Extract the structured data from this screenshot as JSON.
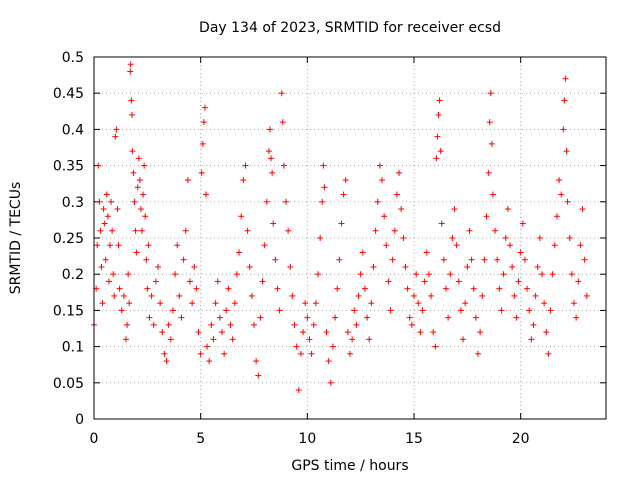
{
  "chart_data": {
    "type": "scatter",
    "title": "Day 134 of 2023, SRMTID for receiver ecsd",
    "xlabel": "GPS time / hours",
    "ylabel": "SRMTID / TECUs",
    "xlim": [
      0,
      24
    ],
    "ylim": [
      0,
      0.5
    ],
    "x_ticks": [
      0,
      5,
      10,
      15,
      20
    ],
    "y_ticks": [
      0,
      0.05,
      0.1,
      0.15,
      0.2,
      0.25,
      0.3,
      0.35,
      0.4,
      0.45,
      0.5
    ],
    "grid": true,
    "marker": "+",
    "color": "#ff0000",
    "series": [
      {
        "name": "SRMTID",
        "points": [
          [
            0.0,
            0.13
          ],
          [
            0.1,
            0.18
          ],
          [
            0.15,
            0.24
          ],
          [
            0.2,
            0.35
          ],
          [
            0.25,
            0.3
          ],
          [
            0.3,
            0.26
          ],
          [
            0.35,
            0.21
          ],
          [
            0.4,
            0.16
          ],
          [
            0.45,
            0.29
          ],
          [
            0.5,
            0.27
          ],
          [
            0.55,
            0.22
          ],
          [
            0.6,
            0.31
          ],
          [
            0.65,
            0.28
          ],
          [
            0.7,
            0.19
          ],
          [
            0.75,
            0.24
          ],
          [
            0.8,
            0.3
          ],
          [
            0.85,
            0.26
          ],
          [
            0.9,
            0.2
          ],
          [
            0.95,
            0.17
          ],
          [
            1.0,
            0.39
          ],
          [
            1.05,
            0.4
          ],
          [
            1.1,
            0.29
          ],
          [
            1.15,
            0.24
          ],
          [
            1.2,
            0.18
          ],
          [
            1.3,
            0.15
          ],
          [
            1.4,
            0.17
          ],
          [
            1.5,
            0.11
          ],
          [
            1.55,
            0.13
          ],
          [
            1.6,
            0.2
          ],
          [
            1.65,
            0.16
          ],
          [
            1.7,
            0.48
          ],
          [
            1.72,
            0.49
          ],
          [
            1.75,
            0.44
          ],
          [
            1.78,
            0.42
          ],
          [
            1.8,
            0.37
          ],
          [
            1.85,
            0.34
          ],
          [
            1.9,
            0.3
          ],
          [
            1.95,
            0.26
          ],
          [
            2.0,
            0.23
          ],
          [
            2.05,
            0.32
          ],
          [
            2.1,
            0.36
          ],
          [
            2.15,
            0.33
          ],
          [
            2.2,
            0.29
          ],
          [
            2.25,
            0.26
          ],
          [
            2.3,
            0.31
          ],
          [
            2.35,
            0.35
          ],
          [
            2.4,
            0.28
          ],
          [
            2.45,
            0.22
          ],
          [
            2.5,
            0.18
          ],
          [
            2.55,
            0.24
          ],
          [
            2.6,
            0.14
          ],
          [
            2.7,
            0.17
          ],
          [
            2.8,
            0.13
          ],
          [
            2.9,
            0.19
          ],
          [
            3.0,
            0.21
          ],
          [
            3.1,
            0.16
          ],
          [
            3.2,
            0.12
          ],
          [
            3.3,
            0.09
          ],
          [
            3.4,
            0.08
          ],
          [
            3.5,
            0.13
          ],
          [
            3.6,
            0.11
          ],
          [
            3.7,
            0.15
          ],
          [
            3.8,
            0.2
          ],
          [
            3.9,
            0.24
          ],
          [
            4.0,
            0.17
          ],
          [
            4.1,
            0.14
          ],
          [
            4.2,
            0.22
          ],
          [
            4.3,
            0.26
          ],
          [
            4.4,
            0.33
          ],
          [
            4.5,
            0.19
          ],
          [
            4.6,
            0.16
          ],
          [
            4.7,
            0.21
          ],
          [
            4.8,
            0.18
          ],
          [
            4.9,
            0.12
          ],
          [
            5.0,
            0.09
          ],
          [
            5.05,
            0.34
          ],
          [
            5.1,
            0.38
          ],
          [
            5.15,
            0.41
          ],
          [
            5.2,
            0.43
          ],
          [
            5.25,
            0.31
          ],
          [
            5.3,
            0.1
          ],
          [
            5.4,
            0.08
          ],
          [
            5.5,
            0.13
          ],
          [
            5.6,
            0.11
          ],
          [
            5.7,
            0.16
          ],
          [
            5.8,
            0.19
          ],
          [
            5.9,
            0.14
          ],
          [
            6.0,
            0.12
          ],
          [
            6.1,
            0.09
          ],
          [
            6.2,
            0.15
          ],
          [
            6.3,
            0.18
          ],
          [
            6.4,
            0.13
          ],
          [
            6.5,
            0.11
          ],
          [
            6.6,
            0.16
          ],
          [
            6.7,
            0.2
          ],
          [
            6.8,
            0.23
          ],
          [
            6.9,
            0.28
          ],
          [
            7.0,
            0.33
          ],
          [
            7.1,
            0.35
          ],
          [
            7.2,
            0.26
          ],
          [
            7.3,
            0.21
          ],
          [
            7.4,
            0.17
          ],
          [
            7.5,
            0.13
          ],
          [
            7.6,
            0.08
          ],
          [
            7.7,
            0.06
          ],
          [
            7.8,
            0.14
          ],
          [
            7.9,
            0.19
          ],
          [
            8.0,
            0.24
          ],
          [
            8.1,
            0.3
          ],
          [
            8.2,
            0.37
          ],
          [
            8.25,
            0.4
          ],
          [
            8.3,
            0.36
          ],
          [
            8.35,
            0.34
          ],
          [
            8.4,
            0.27
          ],
          [
            8.5,
            0.22
          ],
          [
            8.6,
            0.18
          ],
          [
            8.7,
            0.15
          ],
          [
            8.8,
            0.45
          ],
          [
            8.85,
            0.41
          ],
          [
            8.9,
            0.35
          ],
          [
            9.0,
            0.3
          ],
          [
            9.1,
            0.26
          ],
          [
            9.2,
            0.21
          ],
          [
            9.3,
            0.17
          ],
          [
            9.4,
            0.13
          ],
          [
            9.5,
            0.1
          ],
          [
            9.6,
            0.04
          ],
          [
            9.7,
            0.09
          ],
          [
            9.8,
            0.12
          ],
          [
            9.9,
            0.16
          ],
          [
            10.0,
            0.14
          ],
          [
            10.1,
            0.11
          ],
          [
            10.2,
            0.09
          ],
          [
            10.3,
            0.13
          ],
          [
            10.4,
            0.16
          ],
          [
            10.5,
            0.2
          ],
          [
            10.6,
            0.25
          ],
          [
            10.7,
            0.3
          ],
          [
            10.75,
            0.35
          ],
          [
            10.8,
            0.32
          ],
          [
            10.9,
            0.12
          ],
          [
            11.0,
            0.08
          ],
          [
            11.1,
            0.05
          ],
          [
            11.2,
            0.1
          ],
          [
            11.3,
            0.14
          ],
          [
            11.4,
            0.18
          ],
          [
            11.5,
            0.22
          ],
          [
            11.6,
            0.27
          ],
          [
            11.7,
            0.31
          ],
          [
            11.8,
            0.33
          ],
          [
            11.9,
            0.12
          ],
          [
            12.0,
            0.09
          ],
          [
            12.1,
            0.11
          ],
          [
            12.2,
            0.15
          ],
          [
            12.3,
            0.13
          ],
          [
            12.4,
            0.17
          ],
          [
            12.5,
            0.2
          ],
          [
            12.6,
            0.23
          ],
          [
            12.7,
            0.18
          ],
          [
            12.8,
            0.14
          ],
          [
            12.9,
            0.11
          ],
          [
            13.0,
            0.16
          ],
          [
            13.1,
            0.21
          ],
          [
            13.2,
            0.26
          ],
          [
            13.3,
            0.3
          ],
          [
            13.4,
            0.35
          ],
          [
            13.5,
            0.33
          ],
          [
            13.6,
            0.28
          ],
          [
            13.7,
            0.24
          ],
          [
            13.8,
            0.19
          ],
          [
            13.9,
            0.15
          ],
          [
            14.0,
            0.22
          ],
          [
            14.1,
            0.26
          ],
          [
            14.2,
            0.31
          ],
          [
            14.3,
            0.34
          ],
          [
            14.4,
            0.29
          ],
          [
            14.5,
            0.25
          ],
          [
            14.6,
            0.21
          ],
          [
            14.7,
            0.18
          ],
          [
            14.8,
            0.14
          ],
          [
            14.9,
            0.13
          ],
          [
            15.0,
            0.17
          ],
          [
            15.1,
            0.2
          ],
          [
            15.2,
            0.16
          ],
          [
            15.3,
            0.12
          ],
          [
            15.4,
            0.15
          ],
          [
            15.5,
            0.19
          ],
          [
            15.6,
            0.23
          ],
          [
            15.7,
            0.2
          ],
          [
            15.8,
            0.17
          ],
          [
            15.9,
            0.12
          ],
          [
            16.0,
            0.1
          ],
          [
            16.05,
            0.36
          ],
          [
            16.1,
            0.39
          ],
          [
            16.15,
            0.42
          ],
          [
            16.2,
            0.44
          ],
          [
            16.25,
            0.37
          ],
          [
            16.3,
            0.27
          ],
          [
            16.4,
            0.22
          ],
          [
            16.5,
            0.18
          ],
          [
            16.6,
            0.14
          ],
          [
            16.7,
            0.2
          ],
          [
            16.8,
            0.25
          ],
          [
            16.9,
            0.29
          ],
          [
            17.0,
            0.24
          ],
          [
            17.1,
            0.19
          ],
          [
            17.2,
            0.15
          ],
          [
            17.3,
            0.11
          ],
          [
            17.4,
            0.16
          ],
          [
            17.5,
            0.21
          ],
          [
            17.6,
            0.26
          ],
          [
            17.7,
            0.22
          ],
          [
            17.8,
            0.18
          ],
          [
            17.9,
            0.14
          ],
          [
            18.0,
            0.09
          ],
          [
            18.1,
            0.12
          ],
          [
            18.2,
            0.17
          ],
          [
            18.3,
            0.22
          ],
          [
            18.4,
            0.28
          ],
          [
            18.5,
            0.34
          ],
          [
            18.55,
            0.41
          ],
          [
            18.6,
            0.45
          ],
          [
            18.65,
            0.38
          ],
          [
            18.7,
            0.31
          ],
          [
            18.8,
            0.26
          ],
          [
            18.9,
            0.22
          ],
          [
            19.0,
            0.18
          ],
          [
            19.1,
            0.15
          ],
          [
            19.2,
            0.2
          ],
          [
            19.3,
            0.25
          ],
          [
            19.4,
            0.29
          ],
          [
            19.5,
            0.24
          ],
          [
            19.6,
            0.21
          ],
          [
            19.7,
            0.17
          ],
          [
            19.8,
            0.14
          ],
          [
            19.9,
            0.19
          ],
          [
            20.0,
            0.23
          ],
          [
            20.1,
            0.27
          ],
          [
            20.2,
            0.22
          ],
          [
            20.3,
            0.18
          ],
          [
            20.4,
            0.15
          ],
          [
            20.5,
            0.11
          ],
          [
            20.6,
            0.13
          ],
          [
            20.7,
            0.17
          ],
          [
            20.8,
            0.21
          ],
          [
            20.9,
            0.25
          ],
          [
            21.0,
            0.2
          ],
          [
            21.1,
            0.16
          ],
          [
            21.2,
            0.12
          ],
          [
            21.3,
            0.09
          ],
          [
            21.4,
            0.15
          ],
          [
            21.5,
            0.2
          ],
          [
            21.6,
            0.24
          ],
          [
            21.7,
            0.28
          ],
          [
            21.8,
            0.33
          ],
          [
            21.9,
            0.31
          ],
          [
            22.0,
            0.4
          ],
          [
            22.05,
            0.44
          ],
          [
            22.1,
            0.47
          ],
          [
            22.15,
            0.37
          ],
          [
            22.2,
            0.3
          ],
          [
            22.3,
            0.25
          ],
          [
            22.4,
            0.2
          ],
          [
            22.5,
            0.16
          ],
          [
            22.6,
            0.14
          ],
          [
            22.7,
            0.19
          ],
          [
            22.8,
            0.24
          ],
          [
            22.9,
            0.29
          ],
          [
            23.0,
            0.22
          ],
          [
            23.1,
            0.17
          ]
        ]
      }
    ]
  }
}
